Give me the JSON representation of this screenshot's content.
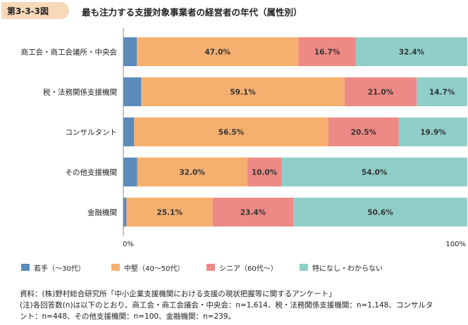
{
  "figure": {
    "label": "第3-3-3図",
    "title": "最も注力する支援対象事業者の経営者の年代（属性別）"
  },
  "colors": {
    "badge": "#f7d9b8",
    "young": "#5b8bbd",
    "middle": "#f5b06f",
    "senior": "#ee8a85",
    "none": "#90cfc9"
  },
  "chart_data": {
    "type": "bar",
    "orientation": "horizontal",
    "stacked": true,
    "categories": [
      "商工会・商工会議所・中央会",
      "税・法務関係支援機関",
      "コンサルタント",
      "その他支援機関",
      "金融機関"
    ],
    "series": [
      {
        "name": "若手（〜30代）",
        "values": [
          3.9,
          5.2,
          3.1,
          4.0,
          0.9
        ],
        "labels": [
          "",
          "",
          "",
          "",
          ""
        ]
      },
      {
        "name": "中堅（40〜50代）",
        "values": [
          47.0,
          59.1,
          56.5,
          32.0,
          25.1
        ],
        "labels": [
          "47.0%",
          "59.1%",
          "56.5%",
          "32.0%",
          "25.1%"
        ]
      },
      {
        "name": "シニア（60代〜）",
        "values": [
          16.7,
          21.0,
          20.5,
          10.0,
          23.4
        ],
        "labels": [
          "16.7%",
          "21.0%",
          "20.5%",
          "10.0%",
          "23.4%"
        ]
      },
      {
        "name": "特になし・わからない",
        "values": [
          32.4,
          14.7,
          19.9,
          54.0,
          50.6
        ],
        "labels": [
          "32.4%",
          "14.7%",
          "19.9%",
          "54.0%",
          "50.6%"
        ]
      }
    ],
    "xlim": [
      0,
      100
    ],
    "x_tick_labels": [
      "0%",
      "100%"
    ],
    "grid": false,
    "legend_position": "bottom"
  },
  "footer": {
    "source": "資料：(株)野村総合研究所「中小企業支援機関における支援の現状把握等に関するアンケート」",
    "note1": "(注)各回答数(n)は以下のとおり。商工会・商工会議会・中央会：n=1,614、税・法務関係支援機関：n=1,148、コンサルタ",
    "note2": "ント：n=448、その他支援機関：n=100、金融機関：n=239。"
  }
}
